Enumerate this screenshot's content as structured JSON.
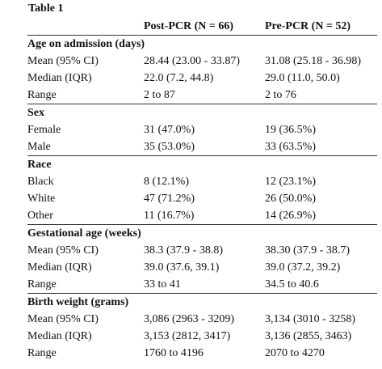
{
  "caption": "Table 1",
  "header": {
    "col1": "",
    "col2": "Post-PCR (N = 66)",
    "col3": "Pre-PCR (N = 52)"
  },
  "sections": [
    {
      "title": "Age on admission (days)",
      "rows": [
        {
          "label": "Mean (95% CI)",
          "post": "28.44 (23.00 - 33.87)",
          "pre": "31.08 (25.18 - 36.98)"
        },
        {
          "label": "Median (IQR)",
          "post": "22.0 (7.2, 44.8)",
          "pre": "29.0 (11.0, 50.0)"
        },
        {
          "label": "Range",
          "post": "2 to 87",
          "pre": "2 to 76"
        }
      ]
    },
    {
      "title": "Sex",
      "rows": [
        {
          "label": "Female",
          "post": "31 (47.0%)",
          "pre": "19 (36.5%)"
        },
        {
          "label": "Male",
          "post": "35 (53.0%)",
          "pre": "33 (63.5%)"
        }
      ]
    },
    {
      "title": "Race",
      "rows": [
        {
          "label": "Black",
          "post": "8 (12.1%)",
          "pre": "12 (23.1%)"
        },
        {
          "label": "White",
          "post": "47 (71.2%)",
          "pre": "26 (50.0%)"
        },
        {
          "label": "Other",
          "post": "11 (16.7%)",
          "pre": "14 (26.9%)"
        }
      ]
    },
    {
      "title": "Gestational age (weeks)",
      "rows": [
        {
          "label": "Mean (95% CI)",
          "post": "38.3 (37.9 - 38.8)",
          "pre": "38.30 (37.9 - 38.7)"
        },
        {
          "label": "Median (IQR)",
          "post": "39.0 (37.6, 39.1)",
          "pre": "39.0 (37.2, 39.2)"
        },
        {
          "label": "Range",
          "post": "33 to 41",
          "pre": "34.5 to 40.6"
        }
      ]
    },
    {
      "title": "Birth weight (grams)",
      "rows": [
        {
          "label": "Mean (95% CI)",
          "post": "3,086 (2963 - 3209)",
          "pre": "3,134 (3010 - 3258)"
        },
        {
          "label": "Median (IQR)",
          "post": "3,153 (2812, 3417)",
          "pre": "3,136 (2855, 3463)"
        },
        {
          "label": "Range",
          "post": "1760 to 4196",
          "pre": "2070 to 4270"
        }
      ]
    }
  ]
}
